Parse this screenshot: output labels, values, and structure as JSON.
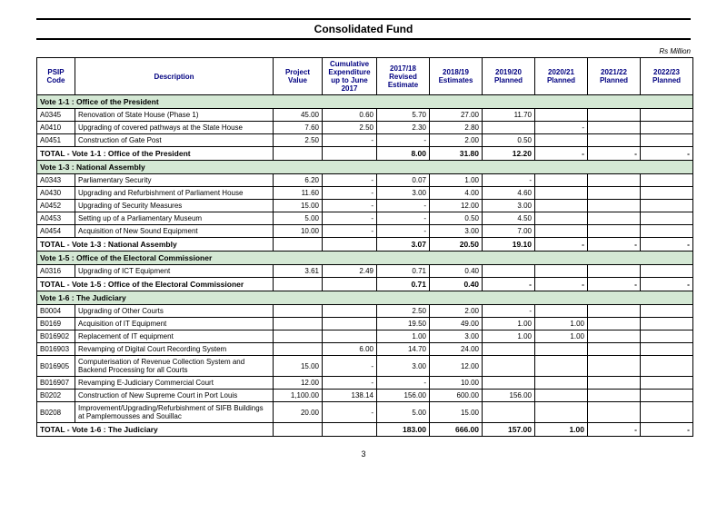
{
  "title": "Consolidated Fund",
  "unit_label": "Rs Million",
  "page_number": "3",
  "headers": {
    "code": "PSIP Code",
    "desc": "Description",
    "value": "Project Value",
    "cum": "Cumulative Expenditure up to June 2017",
    "y1718": "2017/18 Revised Estimate",
    "y1819": "2018/19 Estimates",
    "y1920": "2019/20 Planned",
    "y2021": "2020/21 Planned",
    "y2122": "2021/22 Planned",
    "y2223": "2022/23 Planned"
  },
  "sections": [
    {
      "heading": "Vote 1-1 :  Office of the President",
      "rows": [
        {
          "code": "A0345",
          "desc": "Renovation of State House (Phase 1)",
          "value": "45.00",
          "cum": "0.60",
          "y1718": "5.70",
          "y1819": "27.00",
          "y1920": "11.70",
          "y2021": "",
          "y2122": "",
          "y2223": ""
        },
        {
          "code": "A0410",
          "desc": "Upgrading of covered pathways at the State House",
          "value": "7.60",
          "cum": "2.50",
          "y1718": "2.30",
          "y1819": "2.80",
          "y1920": "",
          "y2021": "-",
          "y2122": "",
          "y2223": ""
        },
        {
          "code": "A0451",
          "desc": "Construction of Gate Post",
          "value": "2.50",
          "cum": "-",
          "y1718": "-",
          "y1819": "2.00",
          "y1920": "0.50",
          "y2021": "",
          "y2122": "",
          "y2223": ""
        }
      ],
      "total": {
        "label": "TOTAL - Vote 1-1 :  Office of the President",
        "value": "",
        "cum": "",
        "y1718": "8.00",
        "y1819": "31.80",
        "y1920": "12.20",
        "y2021": "-",
        "y2122": "-",
        "y2223": "-"
      }
    },
    {
      "heading": "Vote 1-3 :  National Assembly",
      "rows": [
        {
          "code": "A0343",
          "desc": "Parliamentary Security",
          "value": "6.20",
          "cum": "-",
          "y1718": "0.07",
          "y1819": "1.00",
          "y1920": "-",
          "y2021": "",
          "y2122": "",
          "y2223": ""
        },
        {
          "code": "A0430",
          "desc": "Upgrading and Refurbishment of Parliament House",
          "value": "11.60",
          "cum": "-",
          "y1718": "3.00",
          "y1819": "4.00",
          "y1920": "4.60",
          "y2021": "",
          "y2122": "",
          "y2223": ""
        },
        {
          "code": "A0452",
          "desc": "Upgrading of Security Measures",
          "value": "15.00",
          "cum": "-",
          "y1718": "-",
          "y1819": "12.00",
          "y1920": "3.00",
          "y2021": "",
          "y2122": "",
          "y2223": ""
        },
        {
          "code": "A0453",
          "desc": "Setting up of a Parliamentary Museum",
          "value": "5.00",
          "cum": "-",
          "y1718": "-",
          "y1819": "0.50",
          "y1920": "4.50",
          "y2021": "",
          "y2122": "",
          "y2223": ""
        },
        {
          "code": "A0454",
          "desc": "Acquisition of New Sound Equipment",
          "value": "10.00",
          "cum": "-",
          "y1718": "-",
          "y1819": "3.00",
          "y1920": "7.00",
          "y2021": "",
          "y2122": "",
          "y2223": ""
        }
      ],
      "total": {
        "label": "TOTAL - Vote 1-3 :  National Assembly",
        "value": "",
        "cum": "",
        "y1718": "3.07",
        "y1819": "20.50",
        "y1920": "19.10",
        "y2021": "-",
        "y2122": "-",
        "y2223": "-"
      }
    },
    {
      "heading": "Vote 1-5 :  Office of the Electoral Commissioner",
      "rows": [
        {
          "code": "A0316",
          "desc": "Upgrading of ICT Equipment",
          "value": "3.61",
          "cum": "2.49",
          "y1718": "0.71",
          "y1819": "0.40",
          "y1920": "",
          "y2021": "",
          "y2122": "",
          "y2223": ""
        }
      ],
      "total": {
        "label": "TOTAL - Vote 1-5 :  Office of the Electoral Commissioner",
        "value": "",
        "cum": "",
        "y1718": "0.71",
        "y1819": "0.40",
        "y1920": "-",
        "y2021": "-",
        "y2122": "-",
        "y2223": "-"
      }
    },
    {
      "heading": "Vote 1-6 :  The Judiciary",
      "rows": [
        {
          "code": "B0004",
          "desc": "Upgrading of Other Courts",
          "value": "",
          "cum": "",
          "y1718": "2.50",
          "y1819": "2.00",
          "y1920": "-",
          "y2021": "",
          "y2122": "",
          "y2223": ""
        },
        {
          "code": "B0169",
          "desc": "Acquisition of IT Equipment",
          "value": "",
          "cum": "",
          "y1718": "19.50",
          "y1819": "49.00",
          "y1920": "1.00",
          "y2021": "1.00",
          "y2122": "",
          "y2223": ""
        },
        {
          "code": "B016902",
          "desc": "Replacement of IT equipment",
          "value": "",
          "cum": "",
          "y1718": "1.00",
          "y1819": "3.00",
          "y1920": "1.00",
          "y2021": "1.00",
          "y2122": "",
          "y2223": ""
        },
        {
          "code": "B016903",
          "desc": "Revamping of Digital Court Recording System",
          "value": "",
          "cum": "6.00",
          "y1718": "14.70",
          "y1819": "24.00",
          "y1920": "",
          "y2021": "",
          "y2122": "",
          "y2223": ""
        },
        {
          "code": "B016905",
          "desc": "Computerisation of Revenue Collection System and Backend Processing for all Courts",
          "value": "15.00",
          "cum": "-",
          "y1718": "3.00",
          "y1819": "12.00",
          "y1920": "",
          "y2021": "",
          "y2122": "",
          "y2223": ""
        },
        {
          "code": "B016907",
          "desc": "Revamping E-Judiciary Commercial Court",
          "value": "12.00",
          "cum": "-",
          "y1718": "-",
          "y1819": "10.00",
          "y1920": "",
          "y2021": "",
          "y2122": "",
          "y2223": ""
        },
        {
          "code": "B0202",
          "desc": "Construction of New Supreme Court in Port Louis",
          "value": "1,100.00",
          "cum": "138.14",
          "y1718": "156.00",
          "y1819": "600.00",
          "y1920": "156.00",
          "y2021": "",
          "y2122": "",
          "y2223": ""
        },
        {
          "code": "B0208",
          "desc": "Improvement/Upgrading/Refurbishment of SIFB Buildings at Pamplemousses and Souillac",
          "value": "20.00",
          "cum": "-",
          "y1718": "5.00",
          "y1819": "15.00",
          "y1920": "",
          "y2021": "",
          "y2122": "",
          "y2223": ""
        }
      ],
      "total": {
        "label": "TOTAL - Vote 1-6 :  The Judiciary",
        "value": "",
        "cum": "",
        "y1718": "183.00",
        "y1819": "666.00",
        "y1920": "157.00",
        "y2021": "1.00",
        "y2122": "-",
        "y2223": "-"
      }
    }
  ]
}
